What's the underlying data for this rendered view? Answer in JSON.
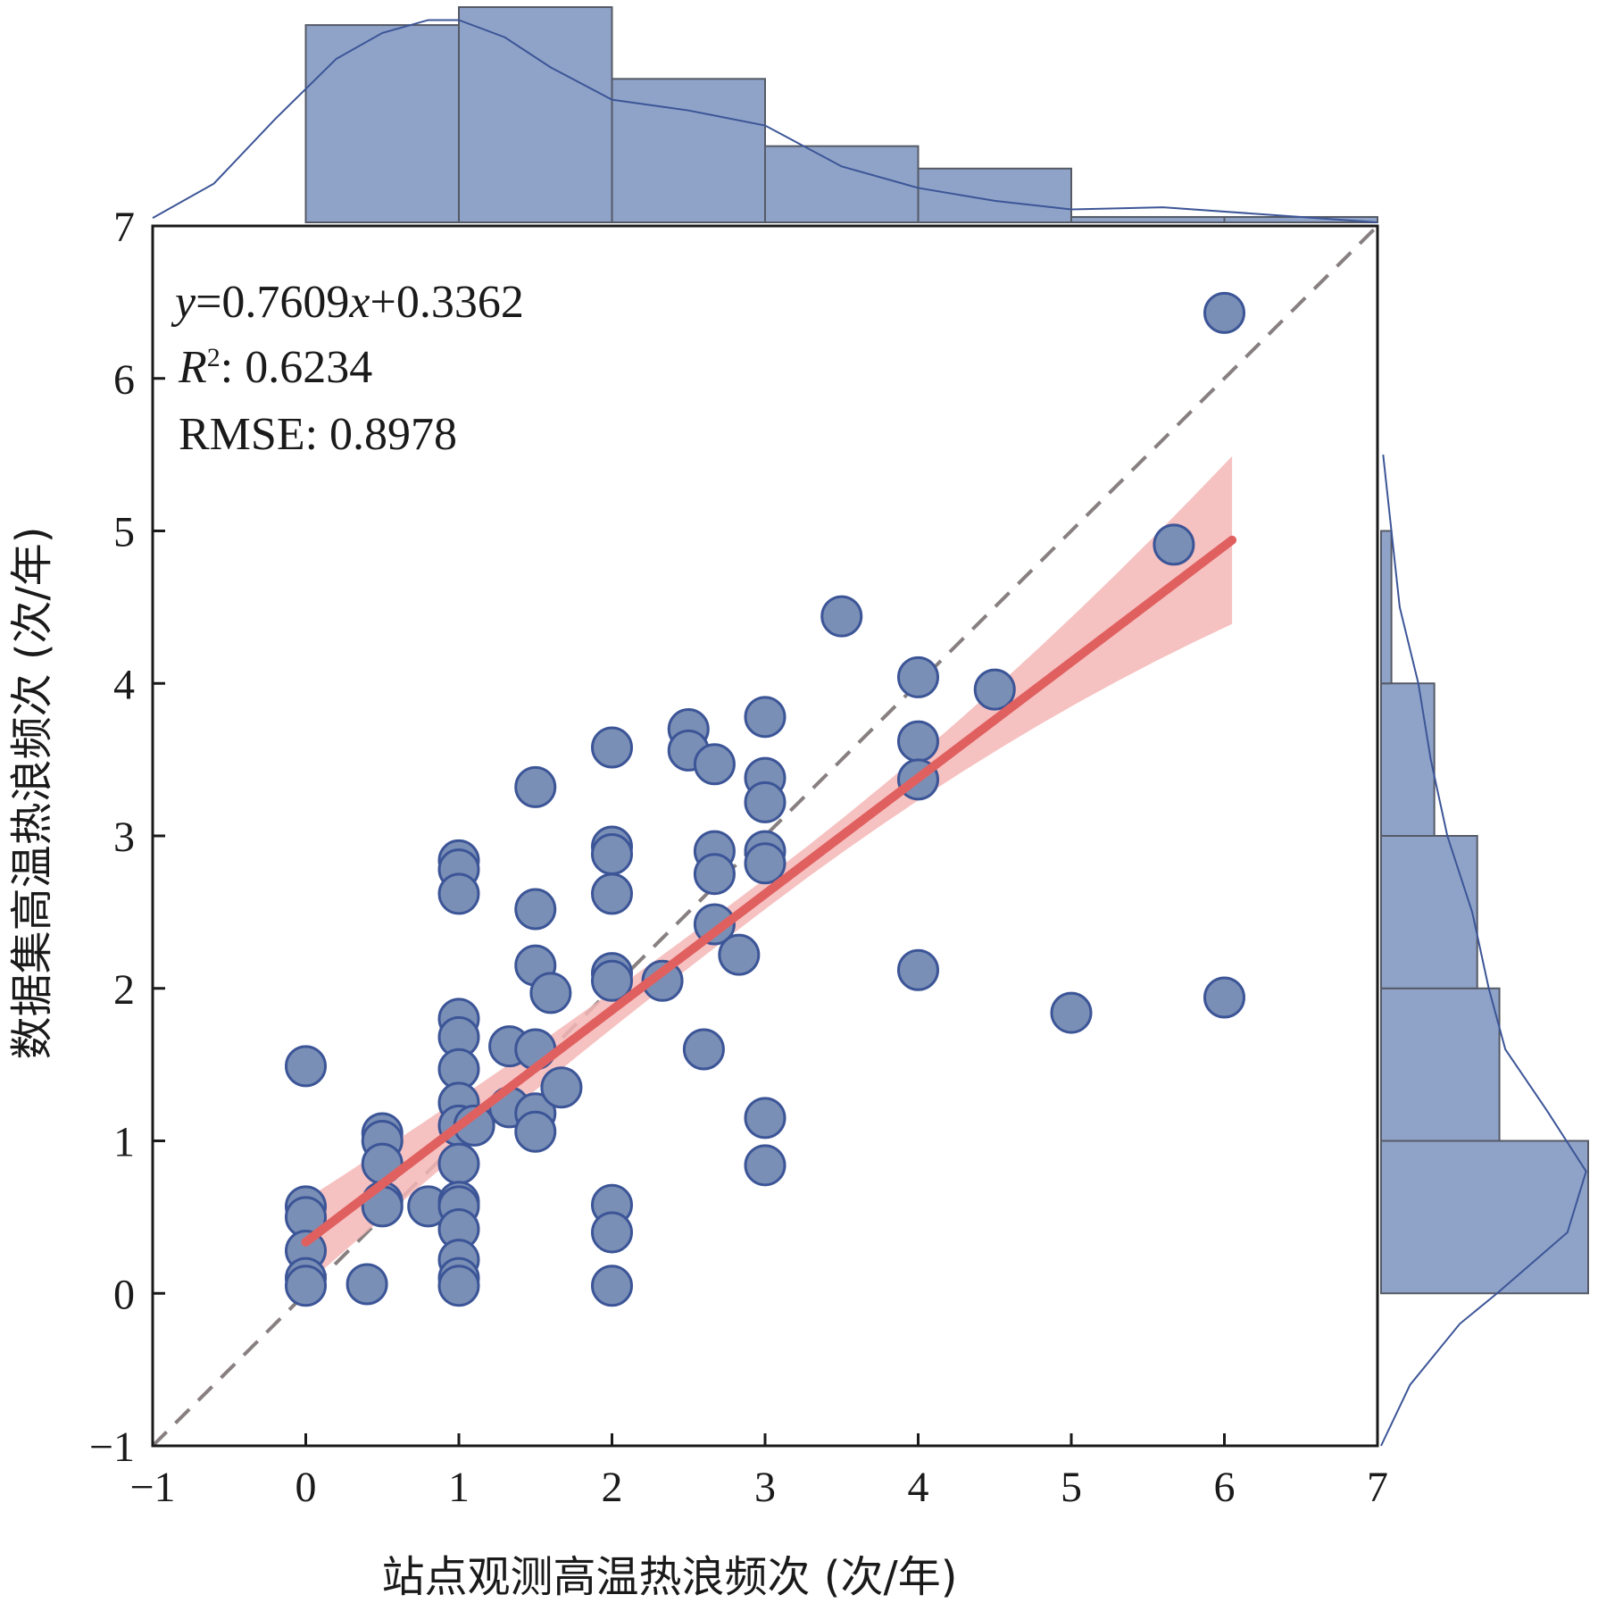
{
  "chart_data": {
    "type": "scatter",
    "xlabel": "站点观测高温热浪频次 (次/年)",
    "ylabel": "数据集高温热浪频次 (次/年)",
    "xlim": [
      -1,
      7
    ],
    "ylim": [
      -1,
      7
    ],
    "xticks": [
      "−1",
      "0",
      "1",
      "2",
      "3",
      "4",
      "5",
      "6",
      "7"
    ],
    "yticks": [
      "−1",
      "0",
      "1",
      "2",
      "3",
      "4",
      "5",
      "6",
      "7"
    ],
    "annotations": {
      "equation": {
        "y_var": "y",
        "middle": "=0.7609",
        "x_var": "x",
        "tail": "+0.3362"
      },
      "r2": {
        "symbol": "R",
        "sup": "2",
        "value": ": 0.6234"
      },
      "rmse": "RMSE: 0.8978"
    },
    "regression": {
      "slope": 0.7609,
      "intercept": 0.3362,
      "x_range": [
        0,
        6.05
      ],
      "ci_half_width_ends": [
        0.28,
        0.55
      ],
      "color": "#e06060",
      "band_color": "#f4b6b6"
    },
    "identity_line": {
      "x_range": [
        -1,
        7
      ],
      "color": "#888080"
    },
    "marker_color": "#7a8fb6",
    "marker_edge": "#3c5597",
    "histogram_color": "#8fa3c8",
    "points": [
      [
        0,
        1.49
      ],
      [
        0,
        0.57
      ],
      [
        0,
        0.5
      ],
      [
        0,
        0.28
      ],
      [
        0,
        0.1
      ],
      [
        0,
        0.05
      ],
      [
        0.4,
        0.06
      ],
      [
        0.5,
        1.05
      ],
      [
        0.5,
        1.0
      ],
      [
        0.5,
        0.85
      ],
      [
        0.5,
        0.6
      ],
      [
        0.5,
        0.57
      ],
      [
        0.8,
        0.57
      ],
      [
        1,
        2.84
      ],
      [
        1,
        2.78
      ],
      [
        1,
        2.62
      ],
      [
        1,
        1.8
      ],
      [
        1,
        1.68
      ],
      [
        1,
        1.47
      ],
      [
        1,
        1.25
      ],
      [
        1,
        1.1
      ],
      [
        1,
        0.85
      ],
      [
        1,
        0.6
      ],
      [
        1,
        0.57
      ],
      [
        1,
        0.42
      ],
      [
        1,
        0.22
      ],
      [
        1,
        0.1
      ],
      [
        1,
        0.05
      ],
      [
        1.1,
        1.1
      ],
      [
        1.33,
        1.62
      ],
      [
        1.33,
        1.22
      ],
      [
        1.5,
        3.32
      ],
      [
        1.5,
        2.52
      ],
      [
        1.5,
        2.15
      ],
      [
        1.5,
        1.6
      ],
      [
        1.5,
        1.18
      ],
      [
        1.5,
        1.06
      ],
      [
        1.6,
        1.97
      ],
      [
        1.67,
        1.35
      ],
      [
        2,
        3.58
      ],
      [
        2,
        2.93
      ],
      [
        2,
        2.88
      ],
      [
        2,
        2.62
      ],
      [
        2,
        2.1
      ],
      [
        2,
        2.05
      ],
      [
        2,
        0.58
      ],
      [
        2,
        0.4
      ],
      [
        2,
        0.05
      ],
      [
        2.33,
        2.05
      ],
      [
        2.5,
        3.7
      ],
      [
        2.5,
        3.56
      ],
      [
        2.67,
        3.47
      ],
      [
        2.67,
        2.9
      ],
      [
        2.67,
        2.75
      ],
      [
        2.67,
        2.42
      ],
      [
        2.6,
        1.6
      ],
      [
        2.83,
        2.22
      ],
      [
        3,
        3.78
      ],
      [
        3,
        3.38
      ],
      [
        3,
        3.22
      ],
      [
        3,
        2.9
      ],
      [
        3,
        2.82
      ],
      [
        3,
        1.15
      ],
      [
        3,
        0.84
      ],
      [
        3.5,
        4.44
      ],
      [
        4,
        4.04
      ],
      [
        4,
        3.62
      ],
      [
        4,
        3.37
      ],
      [
        4,
        2.12
      ],
      [
        4.5,
        3.96
      ],
      [
        5,
        1.84
      ],
      [
        5.67,
        4.91
      ],
      [
        6,
        6.43
      ],
      [
        6,
        1.94
      ]
    ],
    "top_histogram": {
      "bin_edges": [
        0,
        1,
        2,
        3,
        4,
        5,
        6,
        7
      ],
      "counts": [
        22,
        24,
        16,
        8.5,
        6,
        0.6,
        0.6
      ]
    },
    "right_histogram": {
      "bin_edges": [
        0,
        1,
        2,
        3,
        4,
        5
      ],
      "counts": [
        14,
        8,
        6.5,
        3.6,
        0.7
      ]
    }
  }
}
